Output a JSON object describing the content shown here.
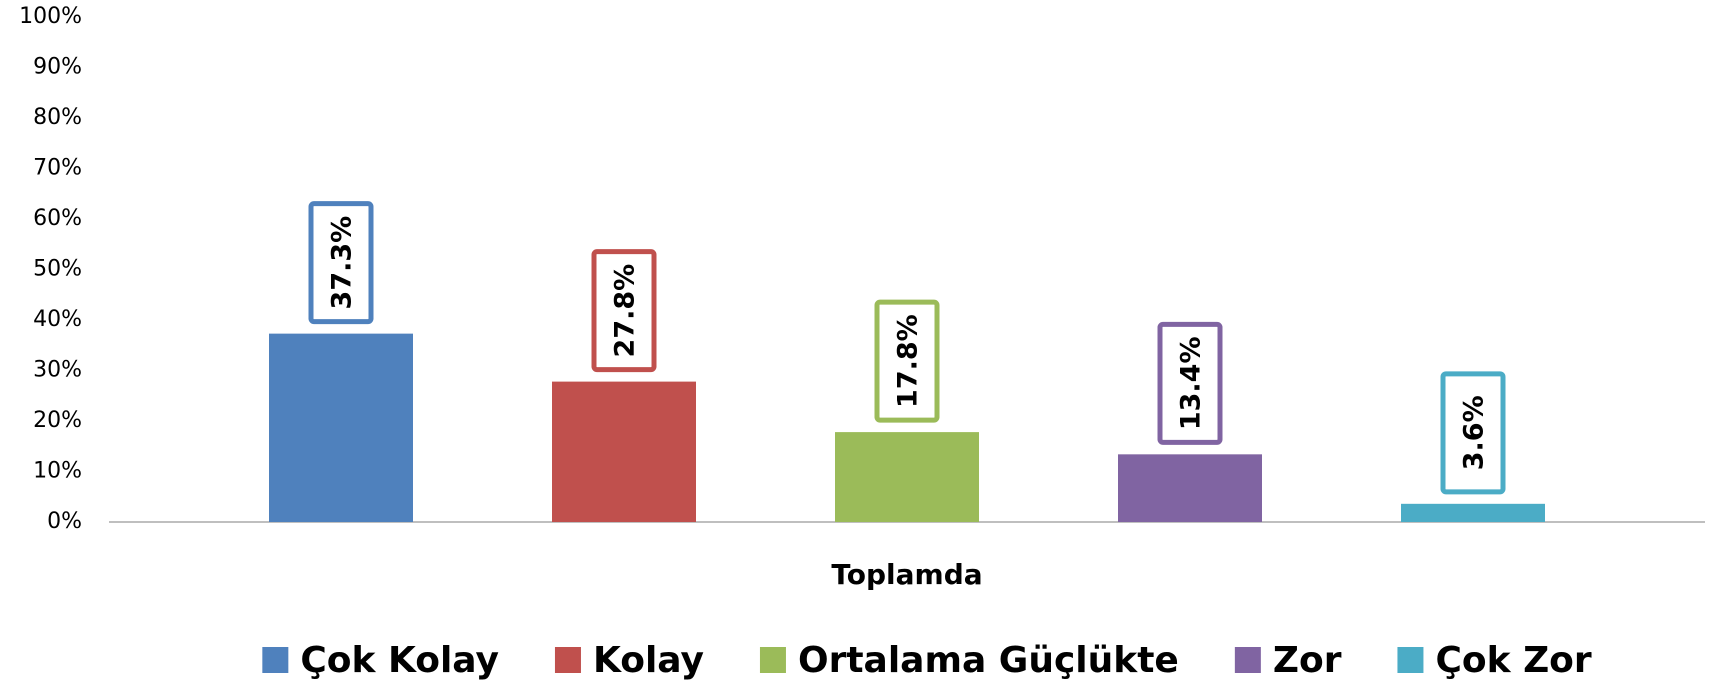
{
  "chart_data": {
    "type": "bar",
    "categories": [
      "Toplamda"
    ],
    "series": [
      {
        "name": "Çok Kolay",
        "color": "#4f81bd",
        "values": [
          37.3
        ],
        "value_labels": [
          "37.3%"
        ]
      },
      {
        "name": "Kolay",
        "color": "#c0504d",
        "values": [
          27.8
        ],
        "value_labels": [
          "27.8%"
        ]
      },
      {
        "name": "Ortalama Güçlükte",
        "color": "#9bbb59",
        "values": [
          17.8
        ],
        "value_labels": [
          "17.8%"
        ]
      },
      {
        "name": "Zor",
        "color": "#8064a2",
        "values": [
          13.4
        ],
        "value_labels": [
          "13.4%"
        ]
      },
      {
        "name": "Çok Zor",
        "color": "#4bacc6",
        "values": [
          3.6
        ],
        "value_labels": [
          "3.6%"
        ]
      }
    ],
    "ylim": [
      0,
      100
    ],
    "yticks": [
      {
        "value": 0,
        "label": "0%"
      },
      {
        "value": 10,
        "label": "10%"
      },
      {
        "value": 20,
        "label": "20%"
      },
      {
        "value": 30,
        "label": "30%"
      },
      {
        "value": 40,
        "label": "40%"
      },
      {
        "value": 50,
        "label": "50%"
      },
      {
        "value": 60,
        "label": "60%"
      },
      {
        "value": 70,
        "label": "70%"
      },
      {
        "value": 80,
        "label": "80%"
      },
      {
        "value": 90,
        "label": "90%"
      },
      {
        "value": 100,
        "label": "100%"
      }
    ],
    "grid": false,
    "legend": "bottom"
  }
}
